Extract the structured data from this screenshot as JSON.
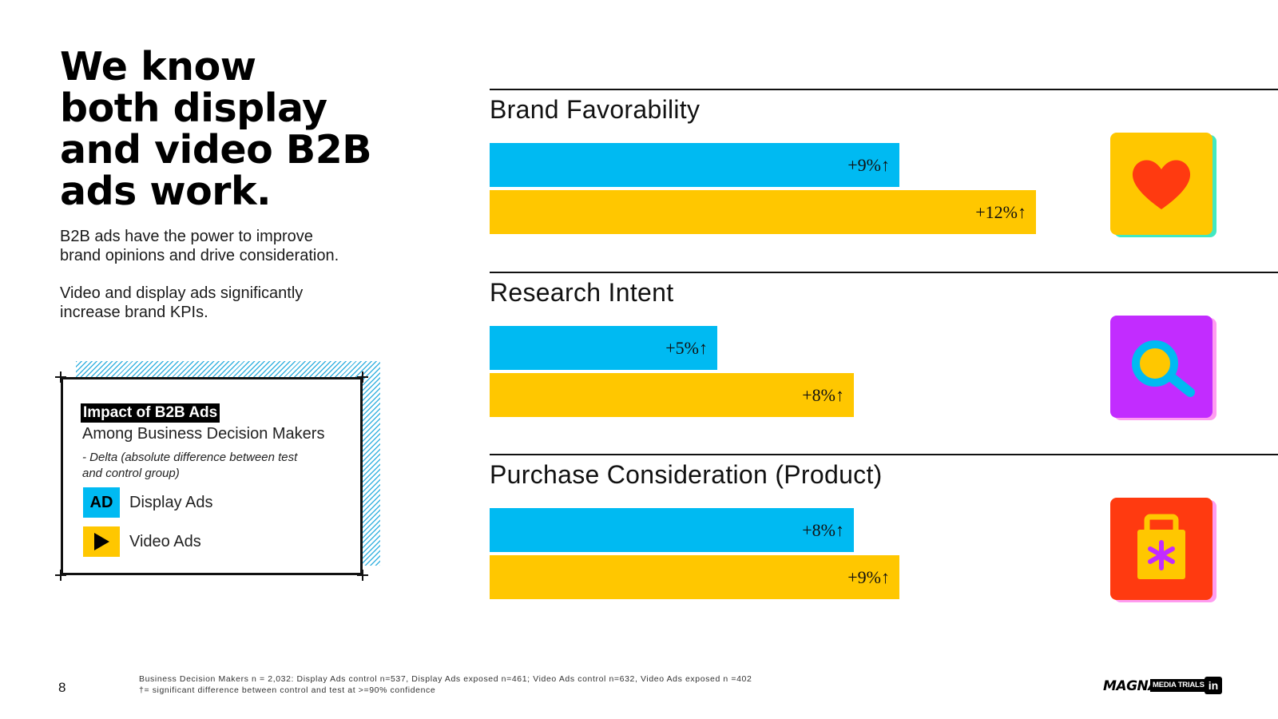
{
  "headline": [
    "We know",
    "both display",
    "and video B2B",
    "ads work."
  ],
  "subtext1": [
    "B2B ads have the power to improve",
    "brand opinions and drive consideration."
  ],
  "subtext2": [
    "Video and display ads significantly",
    "increase brand KPIs."
  ],
  "legend": {
    "title": "Impact of B2B Ads",
    "subtitle": "Among Business Decision Makers",
    "note": [
      "- Delta (absolute difference between test",
      "and control group)"
    ],
    "items": [
      {
        "icon_text": "AD",
        "label": "Display Ads",
        "color": "#00baf2"
      },
      {
        "icon_name": "play-icon",
        "label": "Video Ads",
        "color": "#ffc700"
      }
    ]
  },
  "colors": {
    "display": "#00baf2",
    "video": "#ffc700"
  },
  "chart_data": {
    "type": "bar",
    "orientation": "horizontal",
    "unit": "% delta",
    "significance_marker": "↑",
    "series": [
      {
        "name": "Display Ads",
        "color": "#00baf2"
      },
      {
        "name": "Video Ads",
        "color": "#ffc700"
      }
    ],
    "groups": [
      {
        "title": "Brand Favorability",
        "icon": "heart-icon",
        "values": [
          9,
          12
        ],
        "labels": [
          "+9%↑",
          "+12%↑"
        ]
      },
      {
        "title": "Research Intent",
        "icon": "magnifier-icon",
        "values": [
          5,
          8
        ],
        "labels": [
          "+5%↑",
          "+8%↑"
        ]
      },
      {
        "title": "Purchase Consideration (Product)",
        "icon": "shopping-bag-icon",
        "values": [
          8,
          9
        ],
        "labels": [
          "+8%↑",
          "+9%↑"
        ]
      }
    ]
  },
  "footer": {
    "page_number": "8",
    "footnote": [
      "Business Decision Makers n = 2,032: Display Ads control n=537, Display Ads exposed n=461; Video Ads control n=632, Video Ads exposed n =402",
      "†= significant difference between control and test at >=90% confidence"
    ],
    "brand": "MAGNA",
    "brand_tag": "MEDIA TRIALS",
    "linkedin": "in"
  }
}
